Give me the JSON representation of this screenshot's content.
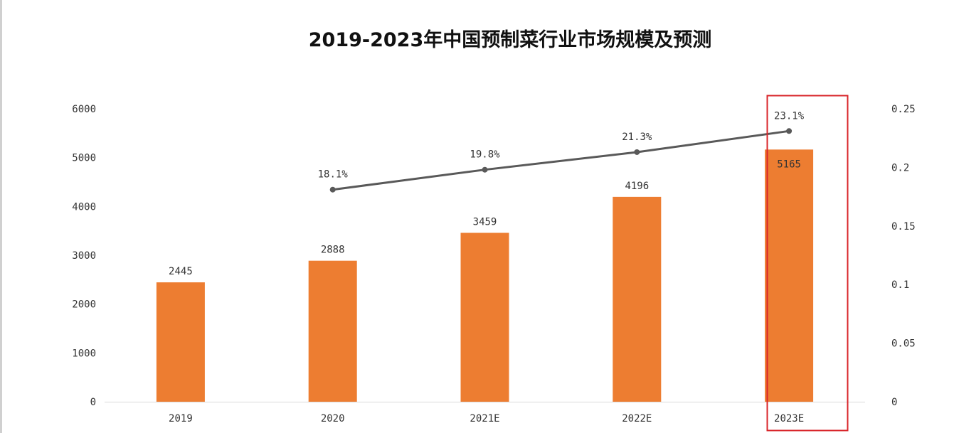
{
  "chart_data": {
    "type": "bar",
    "title": "2019-2023年中国预制菜行业市场规模及预测",
    "categories": [
      "2019",
      "2020",
      "2021E",
      "2022E",
      "2023E"
    ],
    "series": [
      {
        "type": "bar",
        "axis": "left",
        "values": [
          2445,
          2888,
          3459,
          4196,
          5165
        ],
        "labels": [
          "2445",
          "2888",
          "3459",
          "4196",
          "5165"
        ],
        "color": "#ED7D31"
      },
      {
        "type": "line",
        "axis": "right",
        "values": [
          null,
          0.181,
          0.198,
          0.213,
          0.231
        ],
        "labels": [
          "",
          "18.1%",
          "19.8%",
          "21.3%",
          "23.1%"
        ],
        "color": "#595959"
      }
    ],
    "ylim": [
      0,
      6000
    ],
    "yticks": [
      "0",
      "1000",
      "2000",
      "3000",
      "4000",
      "5000",
      "6000"
    ],
    "y2lim": [
      0,
      0.25
    ],
    "y2ticks": [
      "0",
      "0.05",
      "0.1",
      "0.15",
      "0.2",
      "0.25"
    ],
    "highlight": {
      "category": "2023E",
      "color": "#D9262B"
    },
    "grid": false,
    "legend": "none"
  }
}
